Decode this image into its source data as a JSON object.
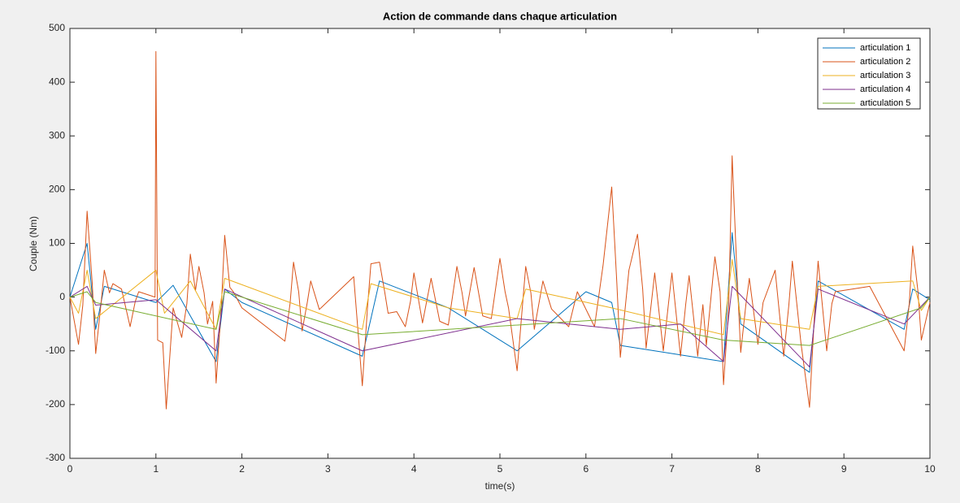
{
  "chart_data": {
    "type": "line",
    "title": "Action de commande dans chaque articulation",
    "x_label": "time(s)",
    "y_label": "Couple (Nm)",
    "xlim": [
      0,
      10
    ],
    "ylim": [
      -300,
      500
    ],
    "xticks": [
      0,
      1,
      2,
      3,
      4,
      5,
      6,
      7,
      8,
      9,
      10
    ],
    "yticks": [
      -300,
      -200,
      -100,
      0,
      100,
      200,
      300,
      400,
      500
    ],
    "grid": false,
    "legend": "top-right",
    "series": [
      {
        "name": "articulation 1",
        "color": "#0072bd",
        "x": [
          0,
          0.2,
          0.3,
          0.4,
          1.0,
          1.2,
          1.7,
          1.8,
          2.0,
          3.4,
          3.6,
          4.4,
          5.2,
          6.0,
          6.3,
          6.4,
          7.6,
          7.7,
          7.8,
          8.6,
          8.7,
          9.7,
          9.8,
          10
        ],
        "values": [
          0,
          100,
          -60,
          20,
          -10,
          22,
          -120,
          15,
          -10,
          -110,
          30,
          -20,
          -100,
          10,
          -10,
          -90,
          -120,
          120,
          -50,
          -140,
          30,
          -60,
          15,
          -5
        ]
      },
      {
        "name": "articulation 2",
        "color": "#d95319",
        "x": [
          0,
          0.1,
          0.15,
          0.2,
          0.26,
          0.3,
          0.36,
          0.4,
          0.46,
          0.5,
          0.6,
          0.7,
          0.76,
          0.8,
          0.99,
          1.0,
          1.02,
          1.08,
          1.12,
          1.2,
          1.3,
          1.36,
          1.4,
          1.46,
          1.5,
          1.56,
          1.6,
          1.66,
          1.7,
          1.76,
          1.8,
          1.86,
          1.9,
          2.0,
          2.5,
          2.56,
          2.6,
          2.66,
          2.7,
          2.76,
          2.8,
          2.9,
          3.3,
          3.4,
          3.46,
          3.5,
          3.6,
          3.66,
          3.7,
          3.8,
          3.9,
          3.96,
          4.0,
          4.1,
          4.2,
          4.3,
          4.4,
          4.5,
          4.56,
          4.6,
          4.7,
          4.8,
          4.9,
          5.0,
          5.06,
          5.1,
          5.2,
          5.26,
          5.3,
          5.36,
          5.4,
          5.5,
          5.6,
          5.8,
          5.9,
          6.1,
          6.2,
          6.3,
          6.36,
          6.4,
          6.46,
          6.5,
          6.6,
          6.66,
          6.7,
          6.76,
          6.8,
          6.9,
          6.96,
          7.0,
          7.1,
          7.16,
          7.2,
          7.3,
          7.36,
          7.4,
          7.5,
          7.56,
          7.6,
          7.66,
          7.7,
          7.76,
          7.8,
          7.86,
          7.9,
          8.0,
          8.06,
          8.2,
          8.3,
          8.36,
          8.4,
          8.5,
          8.6,
          8.66,
          8.7,
          8.8,
          8.86,
          8.9,
          9.3,
          9.7,
          9.76,
          9.8,
          9.86,
          9.9,
          10
        ],
        "values": [
          0,
          -88,
          -15,
          160,
          25,
          -105,
          -15,
          50,
          8,
          25,
          15,
          -55,
          -8,
          10,
          0,
          457,
          -80,
          -85,
          -208,
          -20,
          -75,
          -12,
          80,
          12,
          57,
          8,
          -50,
          -8,
          -160,
          -20,
          115,
          18,
          10,
          -20,
          -82,
          -12,
          65,
          10,
          -63,
          -10,
          30,
          -23,
          38,
          -165,
          -20,
          62,
          65,
          10,
          -30,
          -27,
          -55,
          -8,
          45,
          -48,
          35,
          -45,
          -52,
          57,
          8,
          -35,
          55,
          -35,
          -40,
          72,
          10,
          -20,
          -137,
          -20,
          57,
          8,
          -60,
          30,
          -22,
          -55,
          10,
          -55,
          60,
          205,
          25,
          -112,
          -15,
          50,
          117,
          15,
          -95,
          -12,
          45,
          -100,
          -12,
          45,
          -110,
          -14,
          40,
          -110,
          -14,
          -90,
          75,
          10,
          -163,
          -20,
          263,
          30,
          -103,
          -14,
          35,
          -88,
          -10,
          50,
          -110,
          -14,
          67,
          -85,
          -205,
          -25,
          67,
          -100,
          -12,
          10,
          20,
          -100,
          -12,
          95,
          12,
          -80,
          -10
        ]
      },
      {
        "name": "articulation 3",
        "color": "#edb120",
        "x": [
          0,
          0.1,
          0.2,
          0.3,
          1.0,
          1.1,
          1.4,
          1.7,
          1.8,
          3.4,
          3.5,
          4.4,
          5.2,
          5.3,
          6.3,
          7.6,
          7.7,
          7.8,
          8.6,
          8.7,
          9.8,
          9.9,
          10
        ],
        "values": [
          0,
          -30,
          50,
          -40,
          50,
          -30,
          30,
          -60,
          35,
          -60,
          25,
          -20,
          -40,
          15,
          -20,
          -70,
          70,
          -40,
          -60,
          20,
          30,
          -25,
          0
        ]
      },
      {
        "name": "articulation 4",
        "color": "#7e2f8e",
        "x": [
          0,
          0.2,
          0.3,
          1.0,
          1.7,
          1.8,
          3.4,
          5.2,
          6.4,
          7.1,
          7.6,
          7.7,
          8.6,
          8.7,
          9.7,
          10
        ],
        "values": [
          0,
          20,
          -15,
          -5,
          -100,
          15,
          -100,
          -40,
          -60,
          -50,
          -120,
          20,
          -130,
          15,
          -50,
          0
        ]
      },
      {
        "name": "articulation 5",
        "color": "#77ac30",
        "x": [
          0,
          0.2,
          0.3,
          1.7,
          1.8,
          3.4,
          6.4,
          7.6,
          8.6,
          9.9,
          10
        ],
        "values": [
          0,
          10,
          -10,
          -60,
          10,
          -70,
          -40,
          -80,
          -90,
          -20,
          0
        ]
      }
    ]
  }
}
